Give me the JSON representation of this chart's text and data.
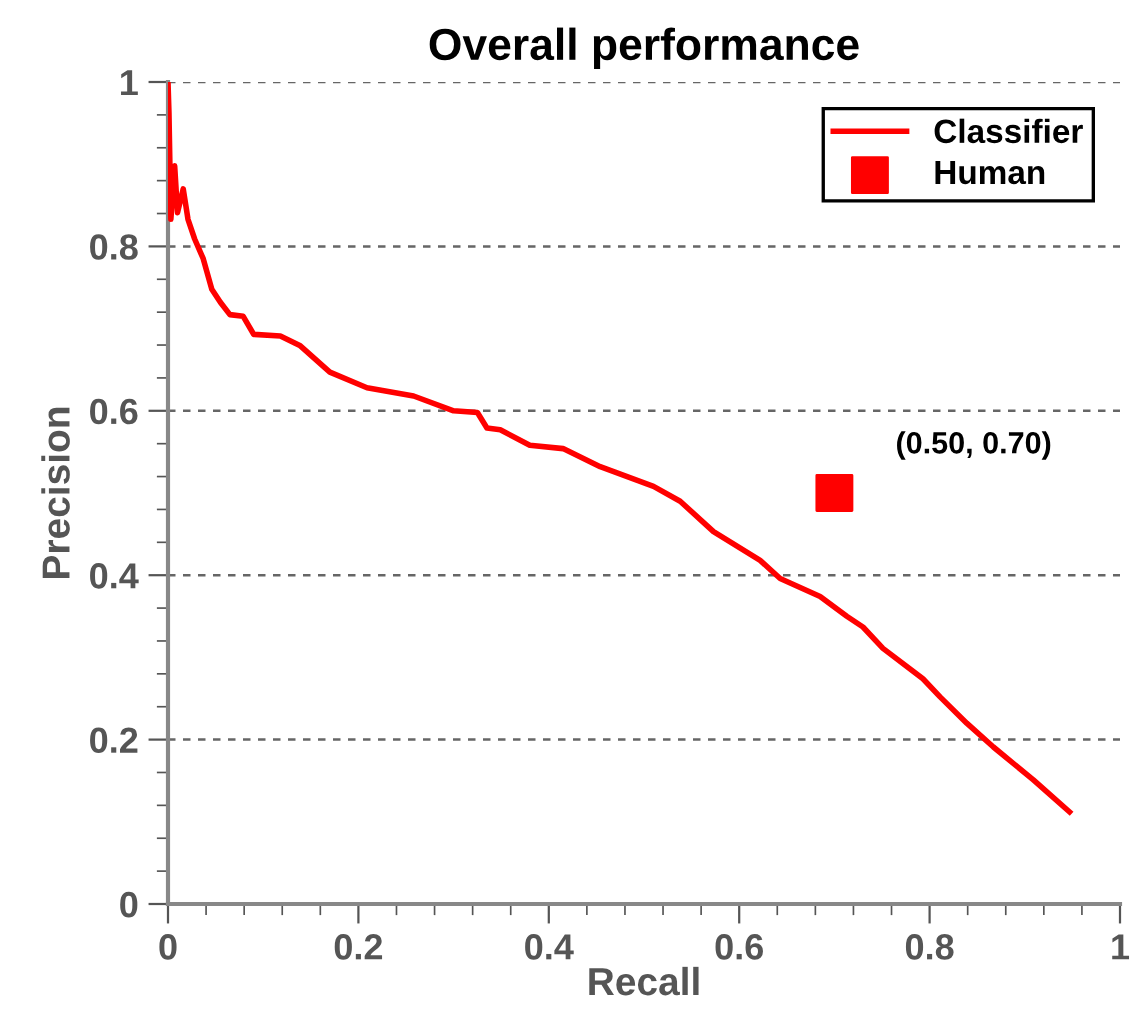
{
  "chart_data": {
    "type": "line",
    "title": "Overall performance",
    "xlabel": "Recall",
    "ylabel": "Precision",
    "xlim": [
      0,
      1
    ],
    "ylim": [
      0,
      1
    ],
    "xticks": [
      0,
      0.2,
      0.4,
      0.6,
      0.8,
      1
    ],
    "yticks": [
      0,
      0.2,
      0.4,
      0.6,
      0.8,
      1
    ],
    "grid": "y",
    "legend": "top right",
    "series": [
      {
        "name": "Classifier",
        "color": "#ff0000",
        "line_style": "solid",
        "marker": "none",
        "x": [
          0,
          0.001,
          0.003,
          0.007,
          0.01,
          0.016,
          0.021,
          0.028,
          0.037,
          0.046,
          0.055,
          0.065,
          0.079,
          0.09,
          0.118,
          0.139,
          0.17,
          0.209,
          0.258,
          0.3,
          0.325,
          0.335,
          0.349,
          0.38,
          0.415,
          0.454,
          0.51,
          0.538,
          0.573,
          0.622,
          0.643,
          0.685,
          0.713,
          0.73,
          0.751,
          0.793,
          0.811,
          0.839,
          0.867,
          0.909,
          0.947
        ],
        "values": [
          1.0,
          0.963,
          0.833,
          0.898,
          0.841,
          0.87,
          0.833,
          0.809,
          0.785,
          0.748,
          0.732,
          0.717,
          0.715,
          0.693,
          0.691,
          0.679,
          0.647,
          0.628,
          0.618,
          0.6,
          0.598,
          0.579,
          0.577,
          0.558,
          0.554,
          0.532,
          0.508,
          0.49,
          0.453,
          0.418,
          0.396,
          0.374,
          0.35,
          0.337,
          0.311,
          0.274,
          0.252,
          0.22,
          0.191,
          0.151,
          0.112
        ]
      },
      {
        "name": "Human",
        "type": "scatter",
        "color": "#ff0000",
        "marker": "square",
        "x": [
          0.7
        ],
        "values": [
          0.5
        ]
      }
    ],
    "annotations": [
      {
        "text": "(0.50, 0.70)",
        "x": 0.7,
        "y": 0.5
      }
    ]
  }
}
